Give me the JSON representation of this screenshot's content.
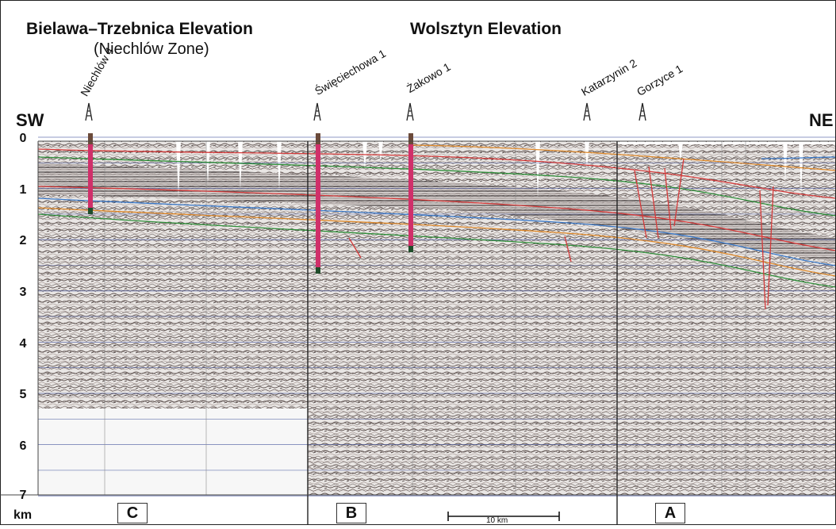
{
  "titles": {
    "left_main": "Bielawa–Trzebnica Elevation",
    "left_sub": "(Niechlów Zone)",
    "center_main": "Wolsztyn Elevation"
  },
  "directions": {
    "left": "SW",
    "right": "NE"
  },
  "depth_axis": {
    "ticks": [
      "0",
      "1",
      "2",
      "3",
      "4",
      "5",
      "6",
      "7"
    ],
    "unit": "km"
  },
  "panels": [
    "C",
    "B",
    "A"
  ],
  "wells": [
    "Niechlów 4",
    "Święciechowa 1",
    "Żakowo 1",
    "Katarzynin 2",
    "Gorzyce 1"
  ],
  "scale_bar": {
    "label": "10 km"
  },
  "colors": {
    "frame": "#222222",
    "grid": "#2a3d8f",
    "horizon_red": "#d43a3a",
    "horizon_green": "#2f8f3a",
    "horizon_blue": "#3a79c9",
    "horizon_orange": "#e08a2a",
    "well_pink": "#d0306a"
  }
}
